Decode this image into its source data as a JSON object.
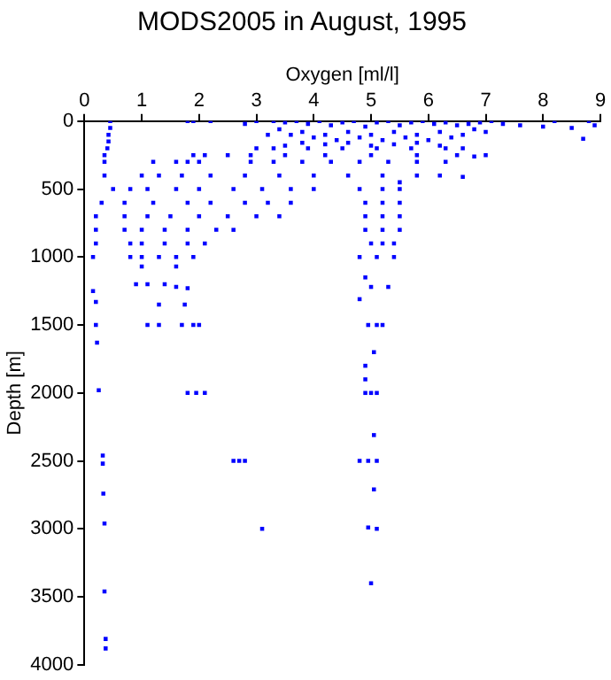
{
  "chart_data": {
    "type": "scatter",
    "title": "MODS2005 in August, 1995",
    "xlabel": "Oxygen [ml/l]",
    "ylabel": "Depth [m]",
    "xlim": [
      0,
      9
    ],
    "xticks": [
      0,
      1,
      2,
      3,
      4,
      5,
      6,
      7,
      8,
      9
    ],
    "ylim": [
      4000,
      0
    ],
    "yticks": [
      0,
      500,
      1000,
      1500,
      2000,
      2500,
      3000,
      3500,
      4000
    ],
    "grid": false,
    "marker": "square",
    "series": [
      {
        "color": "#0000ff",
        "x": [
          0.45,
          0.45,
          0.42,
          0.42,
          0.4,
          0.35,
          0.35,
          0.35,
          1.8,
          1.9,
          2.2,
          2.8,
          3.0,
          3.3,
          3.5,
          3.7,
          3.9,
          4.1,
          4.3,
          4.5,
          4.7,
          4.9,
          5.1,
          5.3,
          5.5,
          5.7,
          5.9,
          6.1,
          6.3,
          6.5,
          6.7,
          6.9,
          7.1,
          7.3,
          7.6,
          8.0,
          8.2,
          8.5,
          8.8,
          8.9,
          8.7,
          3.4,
          3.6,
          3.8,
          4.0,
          4.2,
          4.4,
          4.6,
          4.8,
          5.0,
          5.2,
          5.4,
          5.6,
          5.8,
          6.0,
          6.2,
          6.4,
          6.6,
          6.8,
          7.0,
          3.2,
          3.5,
          3.8,
          4.2,
          4.6,
          5.0,
          5.4,
          5.8,
          6.2,
          6.6,
          3.0,
          3.3,
          3.9,
          4.5,
          5.1,
          5.7,
          6.3,
          1.9,
          2.1,
          2.5,
          2.9,
          3.5,
          4.2,
          5.0,
          5.8,
          6.5,
          6.8,
          7.0,
          1.2,
          1.6,
          1.8,
          2.0,
          2.9,
          3.3,
          3.8,
          4.3,
          4.8,
          5.3,
          5.8,
          6.3,
          1.0,
          1.3,
          1.7,
          2.2,
          2.8,
          3.4,
          4.0,
          4.6,
          5.2,
          5.8,
          6.2,
          6.6,
          5.5,
          0.5,
          0.8,
          1.1,
          1.6,
          2.0,
          2.6,
          3.1,
          3.6,
          4.0,
          4.8,
          5.2,
          5.5,
          0.3,
          0.7,
          1.2,
          1.8,
          2.2,
          2.8,
          3.2,
          3.6,
          4.9,
          5.2,
          5.5,
          0.2,
          0.7,
          1.1,
          1.5,
          2.0,
          2.5,
          3.0,
          3.4,
          4.9,
          5.2,
          5.5,
          0.2,
          0.7,
          1.0,
          1.4,
          1.8,
          2.3,
          2.6,
          4.9,
          5.2,
          5.5,
          0.2,
          0.8,
          1.0,
          1.4,
          1.8,
          2.1,
          5.0,
          5.2,
          5.4,
          0.15,
          0.8,
          1.0,
          1.3,
          1.6,
          1.9,
          4.8,
          5.1,
          5.4,
          1.0,
          1.6,
          0.9,
          1.1,
          1.4,
          1.6,
          1.8,
          4.9,
          5.0,
          5.3,
          0.15,
          0.2,
          1.3,
          1.75,
          4.8,
          0.2,
          1.1,
          1.3,
          1.7,
          1.9,
          2.0,
          4.95,
          5.1,
          5.2,
          0.22,
          5.05,
          4.9,
          4.9,
          0.25,
          1.8,
          1.95,
          2.1,
          4.9,
          5.0,
          5.1,
          5.05,
          0.32,
          0.32,
          2.6,
          2.7,
          2.8,
          4.8,
          4.95,
          5.1,
          5.05,
          0.33,
          0.35,
          3.1,
          4.95,
          5.1,
          0.35,
          5.0,
          0.37,
          0.37
        ],
        "values": [
          0,
          50,
          100,
          150,
          200,
          250,
          300,
          400,
          0,
          0,
          0,
          20,
          0,
          0,
          10,
          0,
          20,
          0,
          30,
          10,
          0,
          40,
          10,
          0,
          30,
          10,
          0,
          20,
          10,
          30,
          20,
          10,
          0,
          20,
          30,
          40,
          0,
          50,
          0,
          30,
          130,
          60,
          100,
          80,
          120,
          100,
          140,
          80,
          120,
          100,
          140,
          80,
          120,
          100,
          140,
          80,
          120,
          100,
          60,
          80,
          100,
          180,
          160,
          170,
          160,
          180,
          170,
          160,
          180,
          200,
          200,
          200,
          200,
          200,
          200,
          200,
          200,
          250,
          250,
          250,
          250,
          250,
          250,
          250,
          250,
          250,
          260,
          250,
          300,
          300,
          300,
          300,
          300,
          300,
          300,
          300,
          300,
          300,
          300,
          300,
          400,
          400,
          400,
          400,
          400,
          400,
          400,
          400,
          400,
          400,
          400,
          410,
          450,
          500,
          500,
          500,
          500,
          500,
          500,
          500,
          500,
          500,
          500,
          500,
          500,
          600,
          600,
          600,
          600,
          600,
          600,
          600,
          600,
          600,
          600,
          600,
          700,
          700,
          700,
          700,
          700,
          700,
          700,
          700,
          700,
          700,
          700,
          800,
          800,
          800,
          800,
          800,
          800,
          800,
          800,
          800,
          800,
          900,
          900,
          900,
          900,
          900,
          900,
          900,
          900,
          900,
          1000,
          1000,
          1000,
          1000,
          1000,
          1000,
          1000,
          1000,
          1000,
          1070,
          1070,
          1200,
          1200,
          1200,
          1220,
          1230,
          1150,
          1220,
          1220,
          1250,
          1330,
          1350,
          1350,
          1310,
          1500,
          1500,
          1500,
          1500,
          1500,
          1500,
          1500,
          1500,
          1500,
          1630,
          1700,
          1800,
          1900,
          1980,
          2000,
          2000,
          2000,
          2000,
          2000,
          2000,
          2310,
          2460,
          2520,
          2500,
          2500,
          2500,
          2500,
          2500,
          2500,
          2710,
          2740,
          2960,
          3000,
          2990,
          3000,
          3460,
          3400,
          3810,
          3880
        ]
      }
    ]
  }
}
